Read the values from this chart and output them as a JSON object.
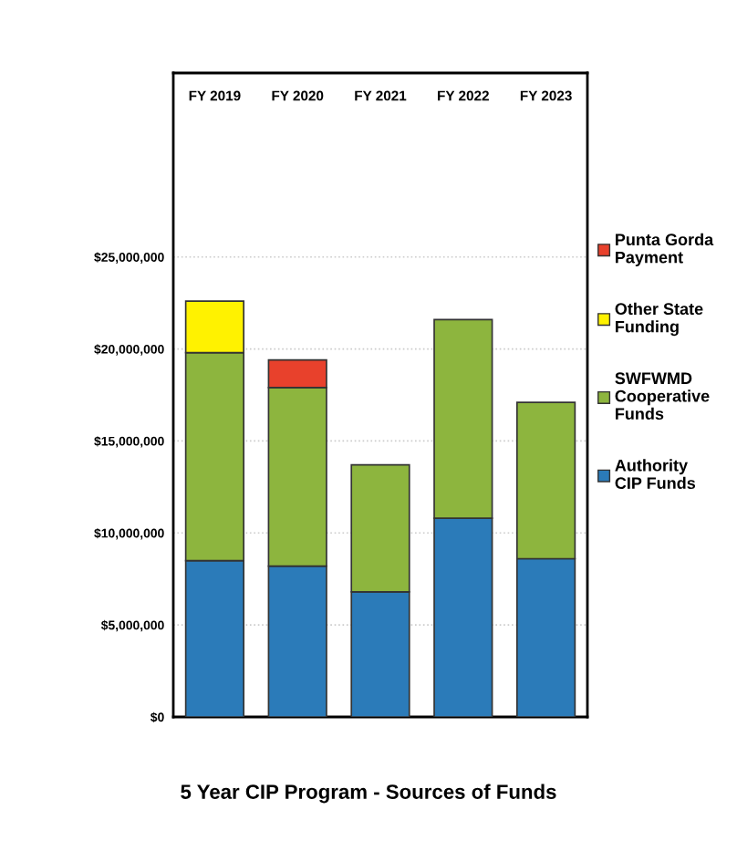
{
  "chart_data": {
    "type": "bar",
    "stacked": true,
    "title": "5 Year CIP Program - Sources of Funds",
    "categories": [
      "FY 2019",
      "FY 2020",
      "FY 2021",
      "FY 2022",
      "FY 2023"
    ],
    "series": [
      {
        "name": "Authority CIP Funds",
        "color": "#2b7bb9",
        "values": [
          8500000,
          8200000,
          6800000,
          10800000,
          8600000
        ]
      },
      {
        "name": "SWFWMD Cooperative Funds",
        "color": "#8db53e",
        "values": [
          11300000,
          9700000,
          6900000,
          10800000,
          8500000
        ]
      },
      {
        "name": "Other State Funding",
        "color": "#fff200",
        "values": [
          2800000,
          null,
          null,
          null,
          null
        ]
      },
      {
        "name": "Punta Gorda Payment",
        "color": "#e8412c",
        "values": [
          null,
          1500000,
          null,
          null,
          null
        ]
      }
    ],
    "ylim": [
      0,
      35000000
    ],
    "yticks": [
      {
        "value": 0,
        "label": "$0"
      },
      {
        "value": 5000000,
        "label": "$5,000,000"
      },
      {
        "value": 10000000,
        "label": "$10,000,000"
      },
      {
        "value": 15000000,
        "label": "$15,000,000"
      },
      {
        "value": 20000000,
        "label": "$20,000,000"
      },
      {
        "value": 25000000,
        "label": "$25,000,000"
      }
    ],
    "grid": "y",
    "legend": "right"
  }
}
